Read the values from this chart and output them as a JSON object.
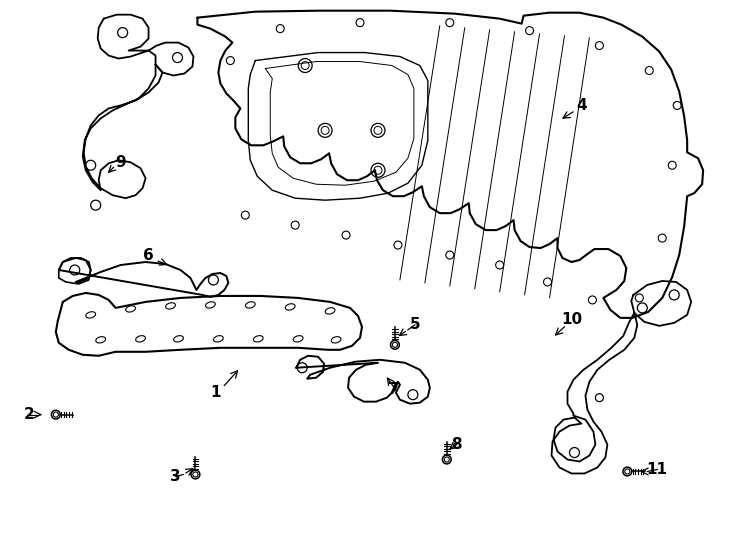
{
  "bg_color": "#ffffff",
  "line_color": "#000000",
  "fig_w": 7.34,
  "fig_h": 5.4,
  "dpi": 100
}
